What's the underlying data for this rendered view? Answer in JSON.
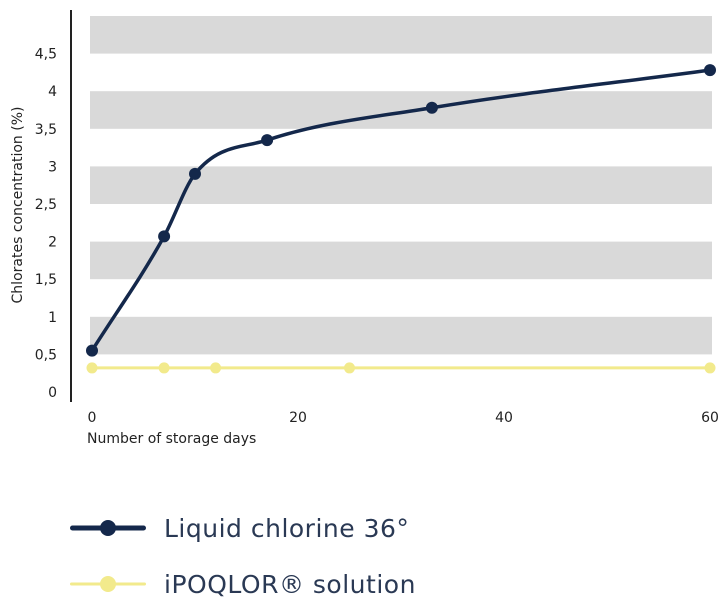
{
  "chart_data": {
    "type": "line",
    "xlabel": "Number of storage days",
    "ylabel": "Chlorates concentration (%)",
    "x_ticks": [
      "0",
      "20",
      "40",
      "60"
    ],
    "y_ticks": [
      "0",
      "0,5",
      "1",
      "1,5",
      "2",
      "2,5",
      "3",
      "3,5",
      "4",
      "4,5"
    ],
    "xlim": [
      0,
      60
    ],
    "ylim": [
      0,
      5
    ],
    "background_bands": [
      [
        0.5,
        1.0
      ],
      [
        1.5,
        2.0
      ],
      [
        2.5,
        3.0
      ],
      [
        3.5,
        4.0
      ],
      [
        4.5,
        5.0
      ]
    ],
    "band_color": "#d9d9d9",
    "legend_position": "bottom-left",
    "series": [
      {
        "name": "Liquid chlorine 36°",
        "color": "#14284b",
        "x": [
          0,
          7,
          10,
          17,
          33,
          60
        ],
        "y": [
          0.55,
          2.07,
          2.9,
          3.35,
          3.78,
          4.28
        ]
      },
      {
        "name": "iPOQLOR® solution",
        "color": "#f2ea8c",
        "x": [
          0,
          7,
          12,
          25,
          60
        ],
        "y": [
          0.32,
          0.32,
          0.32,
          0.32,
          0.32
        ]
      }
    ]
  }
}
